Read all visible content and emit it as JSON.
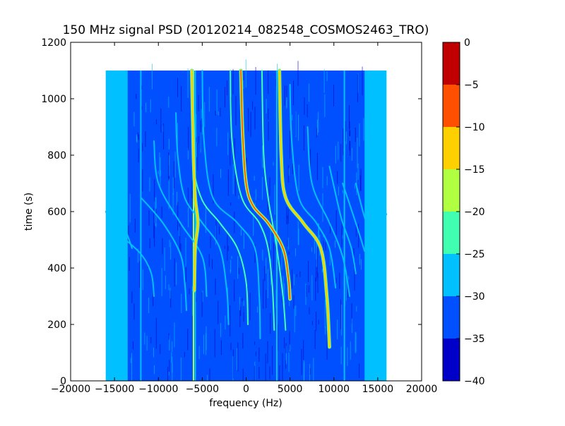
{
  "chart_data": [
    {
      "type": "heatmap",
      "title": "150 MHz signal PSD (20120214_082548_COSMOS2463_TRO)",
      "xlabel": "frequency (Hz)",
      "ylabel": "time (s)",
      "xlim": [
        -20000,
        20000
      ],
      "ylim": [
        0,
        1200
      ],
      "xticks": [
        -20000,
        -15000,
        -10000,
        -5000,
        0,
        5000,
        10000,
        15000,
        20000
      ],
      "yticks": [
        0,
        200,
        400,
        600,
        800,
        1000,
        1200
      ],
      "data_extent": {
        "x": [
          -16000,
          16000
        ],
        "y": [
          0,
          1100
        ]
      },
      "background_level": -33,
      "edge_band_level": -28,
      "colormap": "jet",
      "colorbar": {
        "range": [
          -40,
          0
        ],
        "ticks": [
          0,
          -5,
          -10,
          -15,
          -20,
          -25,
          -30,
          -35,
          -40
        ],
        "bands": [
          {
            "from": -40,
            "to": -35,
            "color": "#0000c8"
          },
          {
            "from": -35,
            "to": -30,
            "color": "#0050ff"
          },
          {
            "from": -30,
            "to": -25,
            "color": "#00c0ff"
          },
          {
            "from": -25,
            "to": -20,
            "color": "#40ffb0"
          },
          {
            "from": -20,
            "to": -15,
            "color": "#b0ff40"
          },
          {
            "from": -15,
            "to": -10,
            "color": "#ffd000"
          },
          {
            "from": -10,
            "to": -5,
            "color": "#ff5000"
          },
          {
            "from": -5,
            "to": 0,
            "color": "#c00000"
          }
        ]
      },
      "constant_lines": [
        {
          "freq": -6000,
          "t_start": 0,
          "t_end": 1100,
          "level": -18
        },
        {
          "freq": 3500,
          "t_start": 0,
          "t_end": 1100,
          "level": -26
        },
        {
          "freq": -12000,
          "t_start": 0,
          "t_end": 1100,
          "level": -28
        },
        {
          "freq": -5800,
          "t_start": 0,
          "t_end": 1100,
          "level": -28
        },
        {
          "freq": 11200,
          "t_start": 0,
          "t_end": 1100,
          "level": -29
        }
      ],
      "doppler_tracks": [
        {
          "center_freq": 3000,
          "t_center": 560,
          "level": -5,
          "points": [
            [
              -600,
              1100
            ],
            [
              -400,
              880
            ],
            [
              0,
              700
            ],
            [
              800,
              620
            ],
            [
              2500,
              560
            ],
            [
              4200,
              470
            ],
            [
              4800,
              370
            ],
            [
              5000,
              290
            ]
          ]
        },
        {
          "center_freq": -6000,
          "t_center": 560,
          "level": -14,
          "points": [
            [
              -6200,
              1100
            ],
            [
              -6000,
              800
            ],
            [
              -5800,
              650
            ],
            [
              -5500,
              560
            ],
            [
              -5800,
              470
            ],
            [
              -5900,
              320
            ]
          ]
        },
        {
          "center_freq": 6500,
          "t_center": 560,
          "level": -13,
          "points": [
            [
              3800,
              1100
            ],
            [
              4000,
              800
            ],
            [
              4500,
              650
            ],
            [
              6500,
              560
            ],
            [
              8500,
              470
            ],
            [
              9200,
              300
            ],
            [
              9500,
              120
            ]
          ]
        },
        {
          "center_freq": 3000,
          "t_center": 560,
          "level": -24,
          "points": [
            [
              1800,
              1100
            ],
            [
              2000,
              800
            ],
            [
              2500,
              650
            ],
            [
              3000,
              560
            ],
            [
              3500,
              470
            ],
            [
              4200,
              300
            ],
            [
              4500,
              180
            ]
          ]
        },
        {
          "center_freq": -3000,
          "t_center": 560,
          "level": -22,
          "points": [
            [
              -6000,
              900
            ],
            [
              -6000,
              760
            ],
            [
              -5000,
              640
            ],
            [
              -3000,
              560
            ],
            [
              -1000,
              470
            ],
            [
              0,
              350
            ],
            [
              200,
              200
            ]
          ]
        },
        {
          "center_freq": 1500,
          "t_center": 560,
          "level": -24,
          "points": [
            [
              -1800,
              1100
            ],
            [
              -1600,
              850
            ],
            [
              -500,
              650
            ],
            [
              1500,
              560
            ],
            [
              2500,
              470
            ],
            [
              3000,
              330
            ],
            [
              3200,
              180
            ]
          ]
        },
        {
          "center_freq": -1000,
          "t_center": 560,
          "level": -26,
          "points": [
            [
              -5000,
              1100
            ],
            [
              -4800,
              850
            ],
            [
              -3800,
              650
            ],
            [
              -1000,
              560
            ],
            [
              1000,
              470
            ],
            [
              1500,
              300
            ],
            [
              1600,
              150
            ]
          ]
        },
        {
          "center_freq": -5000,
          "t_center": 560,
          "level": -26,
          "points": [
            [
              -8000,
              950
            ],
            [
              -7800,
              800
            ],
            [
              -7000,
              650
            ],
            [
              -5000,
              560
            ],
            [
              -3000,
              470
            ],
            [
              -2200,
              320
            ],
            [
              -2000,
              200
            ]
          ]
        },
        {
          "center_freq": -7500,
          "t_center": 560,
          "level": -27,
          "points": [
            [
              -10500,
              850
            ],
            [
              -10000,
              700
            ],
            [
              -7500,
              560
            ],
            [
              -5000,
              440
            ],
            [
              -4500,
              300
            ]
          ]
        },
        {
          "center_freq": -9500,
          "t_center": 560,
          "level": -27,
          "points": [
            [
              -12000,
              650
            ],
            [
              -9500,
              560
            ],
            [
              -7500,
              450
            ],
            [
              -7000,
              350
            ],
            [
              -6800,
              250
            ]
          ]
        },
        {
          "center_freq": -12000,
          "t_center": 560,
          "level": -27,
          "points": [
            [
              -14500,
              520
            ],
            [
              -12000,
              450
            ],
            [
              -10800,
              380
            ],
            [
              -10500,
              300
            ]
          ]
        },
        {
          "center_freq": 8000,
          "t_center": 560,
          "level": -26,
          "points": [
            [
              5000,
              1050
            ],
            [
              5200,
              850
            ],
            [
              6000,
              650
            ],
            [
              8000,
              560
            ],
            [
              9500,
              470
            ],
            [
              10200,
              330
            ]
          ]
        },
        {
          "center_freq": 9500,
          "t_center": 560,
          "level": -27,
          "points": [
            [
              7000,
              900
            ],
            [
              7500,
              700
            ],
            [
              9500,
              560
            ],
            [
              11000,
              440
            ],
            [
              11800,
              300
            ]
          ]
        },
        {
          "center_freq": 11000,
          "t_center": 560,
          "level": -28,
          "points": [
            [
              9500,
              760
            ],
            [
              10500,
              620
            ],
            [
              11000,
              560
            ],
            [
              12000,
              470
            ],
            [
              12500,
              380
            ]
          ]
        },
        {
          "center_freq": 12500,
          "t_center": 560,
          "level": -28,
          "points": [
            [
              11000,
              700
            ],
            [
              12500,
              560
            ],
            [
              13500,
              460
            ]
          ]
        },
        {
          "center_freq": 13500,
          "t_center": 560,
          "level": -28,
          "points": [
            [
              12500,
              700
            ],
            [
              13500,
              580
            ],
            [
              14500,
              500
            ]
          ]
        },
        {
          "center_freq": -15000,
          "t_center": 560,
          "level": -25,
          "points": [
            [
              -15500,
              700
            ],
            [
              -15000,
              650
            ],
            [
              -14000,
              560
            ],
            [
              -13000,
              470
            ]
          ]
        },
        {
          "center_freq": -15800,
          "t_center": 600,
          "level": -26,
          "points": [
            [
              -16000,
              600
            ],
            [
              -15500,
              570
            ],
            [
              -14500,
              500
            ],
            [
              -13800,
              440
            ]
          ]
        },
        {
          "center_freq": 15000,
          "t_center": 600,
          "level": -26,
          "points": [
            [
              14500,
              700
            ],
            [
              15000,
              650
            ],
            [
              16000,
              590
            ]
          ]
        }
      ]
    }
  ]
}
